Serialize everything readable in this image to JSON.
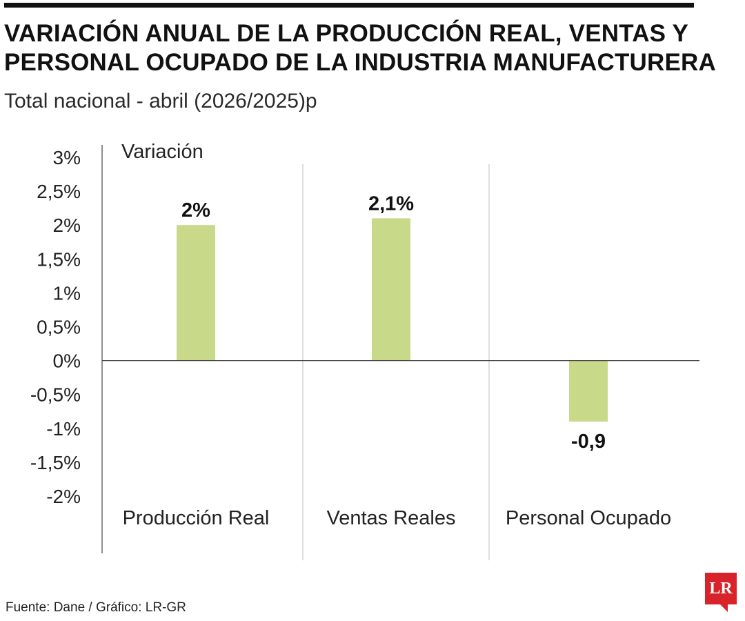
{
  "header": {
    "title_line1": "VARIACIÓN ANUAL DE LA PRODUCCIÓN REAL, VENTAS Y",
    "title_line2": "PERSONAL OCUPADO DE LA INDUSTRIA MANUFACTURERA",
    "subtitle": "Total nacional - abril (2026/2025)p"
  },
  "footer": {
    "source": "Fuente: Dane / Gráfico: LR-GR",
    "logo_text": "LR"
  },
  "chart_data": {
    "type": "bar",
    "ylabel": "Variación",
    "categories": [
      "Producción Real",
      "Ventas Reales",
      "Personal Ocupado"
    ],
    "values": [
      2,
      2.1,
      -0.9
    ],
    "value_labels": [
      "2%",
      "2,1%",
      "-0,9"
    ],
    "ylim": [
      -2,
      3
    ],
    "y_ticks": [
      3,
      2.5,
      2,
      1.5,
      1,
      0.5,
      0,
      -0.5,
      -1,
      -1.5,
      -2
    ],
    "y_tick_labels": [
      "3%",
      "2,5%",
      "2%",
      "1,5%",
      "1%",
      "0,5%",
      "0%",
      "-0,5%",
      "-1%",
      "-1,5%",
      "-2%"
    ],
    "grid": false,
    "legend": "none"
  },
  "colors": {
    "bar": "#c8d98a",
    "axis": "#444444",
    "divider": "#c8c8c8",
    "brand": "#d8232a"
  }
}
